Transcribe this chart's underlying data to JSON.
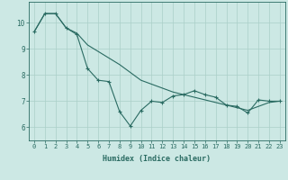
{
  "title": "",
  "xlabel": "Humidex (Indice chaleur)",
  "ylabel": "",
  "bg_color": "#cce8e4",
  "line_color": "#2a6b62",
  "grid_color": "#aacfc8",
  "x_values": [
    0,
    1,
    2,
    3,
    4,
    5,
    6,
    7,
    8,
    9,
    10,
    11,
    12,
    13,
    14,
    15,
    16,
    17,
    18,
    19,
    20,
    21,
    22,
    23
  ],
  "line1_y": [
    9.65,
    10.35,
    10.35,
    9.8,
    9.55,
    8.25,
    7.8,
    7.75,
    6.6,
    6.05,
    6.65,
    7.0,
    6.95,
    7.2,
    7.25,
    7.4,
    7.25,
    7.15,
    6.85,
    6.8,
    6.55,
    7.05,
    7.0,
    7.0
  ],
  "line2_y": [
    9.65,
    10.35,
    10.35,
    9.8,
    9.6,
    9.15,
    8.9,
    8.65,
    8.4,
    8.1,
    7.8,
    7.65,
    7.5,
    7.35,
    7.25,
    7.15,
    7.05,
    6.95,
    6.85,
    6.75,
    6.65,
    6.8,
    6.95,
    7.0
  ],
  "ylim": [
    5.5,
    10.8
  ],
  "yticks": [
    6,
    7,
    8,
    9,
    10
  ],
  "tick_fontsize": 5.0,
  "xlabel_fontsize": 6.0
}
